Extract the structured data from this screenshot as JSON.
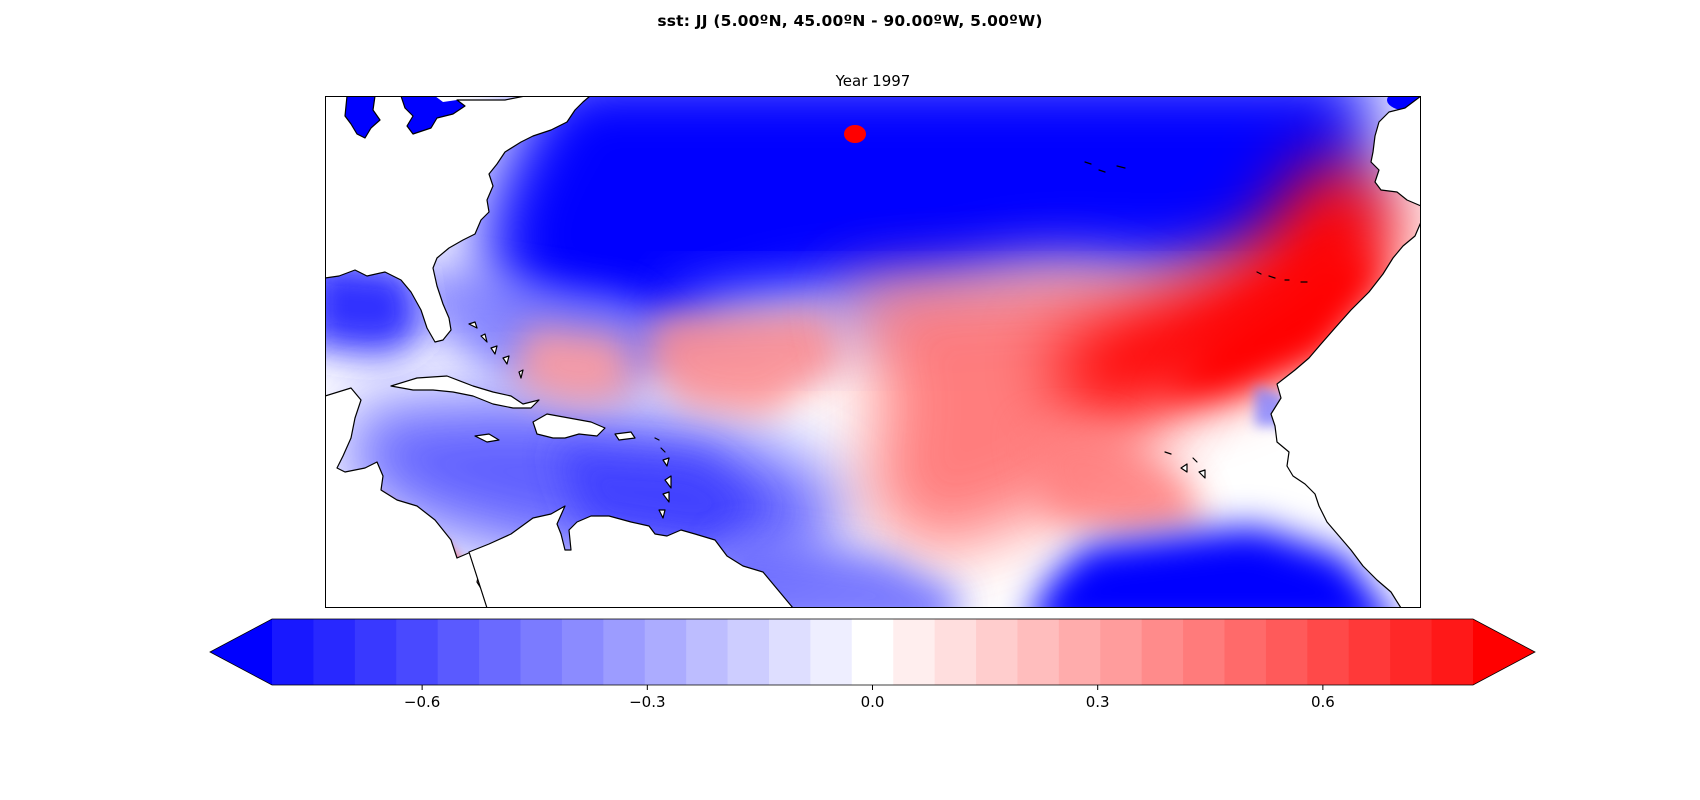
{
  "figure": {
    "suptitle": "sst: JJ (5.00ºN, 45.00ºN - 90.00ºW, 5.00ºW)",
    "panel_title": "Year 1997"
  },
  "map": {
    "variable": "sst",
    "region": {
      "lat": [
        5,
        45
      ],
      "lon": [
        -90,
        -5
      ]
    },
    "colormap": "bwr",
    "land_color": "#ffffff",
    "coastline_color": "#000000",
    "anomaly_fields": [
      {
        "name": "north-atlantic-cold",
        "lon": -45,
        "lat": 39,
        "value": -0.9
      },
      {
        "name": "west-atlantic-cold",
        "lon": -70,
        "lat": 36,
        "value": -0.8
      },
      {
        "name": "north-atlantic-warm-spot",
        "lon": -49,
        "lat": 42,
        "value": 0.9
      },
      {
        "name": "african-coast-warm",
        "lon": -20,
        "lat": 21,
        "value": 0.85
      },
      {
        "name": "central-tropical-warm",
        "lon": -35,
        "lat": 17,
        "value": 0.4
      },
      {
        "name": "southeast-tropical-warm",
        "lon": -30,
        "lat": 12,
        "value": 0.35
      },
      {
        "name": "antilles-warm",
        "lon": -56,
        "lat": 19,
        "value": 0.3
      },
      {
        "name": "caribbean-cool",
        "lon": -73,
        "lat": 13,
        "value": -0.5
      },
      {
        "name": "gulf-cool",
        "lon": -88,
        "lat": 21,
        "value": -0.4
      },
      {
        "name": "equatorial-cold",
        "lon": -30,
        "lat": 5.5,
        "value": -0.8
      },
      {
        "name": "pacific-warm",
        "lon": -88,
        "lat": 7,
        "value": 0.9
      }
    ]
  },
  "colorbar": {
    "vmin": -0.8,
    "vmax": 0.8,
    "levels": 29,
    "extend": "both",
    "ticks": [
      -0.6,
      -0.3,
      0.0,
      0.3,
      0.6
    ],
    "tick_labels": [
      "−0.6",
      "−0.3",
      "0.0",
      "0.3",
      "0.6"
    ]
  }
}
